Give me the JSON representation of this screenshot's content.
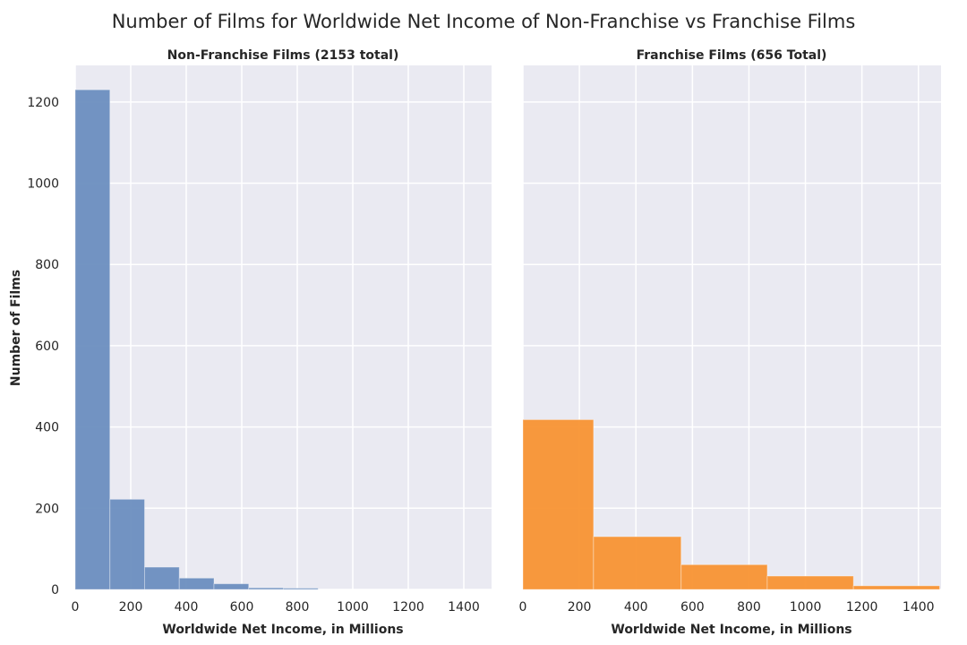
{
  "chart_data": {
    "type": "bar",
    "title": "Number of Films for Worldwide Net Income of Non-Franchise vs Franchise Films",
    "ylabel": "Number of Films",
    "ylim": [
      0,
      1290
    ],
    "yticks": [
      0,
      200,
      400,
      600,
      800,
      1000,
      1200
    ],
    "grid": true,
    "panels": [
      {
        "title": "Non-Franchise Films (2153 total)",
        "xlabel": "Worldwide Net Income, in Millions",
        "xlim": [
          0,
          1500
        ],
        "xticks": [
          0,
          200,
          400,
          600,
          800,
          1000,
          1200,
          1400
        ],
        "color": "#6C8EBF",
        "bins": [
          {
            "start": 0,
            "end": 125,
            "count": 1230
          },
          {
            "start": 125,
            "end": 250,
            "count": 222
          },
          {
            "start": 250,
            "end": 375,
            "count": 55
          },
          {
            "start": 375,
            "end": 500,
            "count": 28
          },
          {
            "start": 500,
            "end": 625,
            "count": 14
          },
          {
            "start": 625,
            "end": 750,
            "count": 4
          },
          {
            "start": 750,
            "end": 875,
            "count": 3
          }
        ]
      },
      {
        "title": "Franchise Films (656 Total)",
        "xlabel": "Worldwide Net Income, in Millions",
        "xlim": [
          0,
          1480
        ],
        "xticks": [
          0,
          200,
          400,
          600,
          800,
          1000,
          1200,
          1400
        ],
        "color": "#F89433",
        "bins": [
          {
            "start": 0,
            "end": 250,
            "count": 418
          },
          {
            "start": 250,
            "end": 560,
            "count": 130
          },
          {
            "start": 560,
            "end": 865,
            "count": 61
          },
          {
            "start": 865,
            "end": 1170,
            "count": 33
          },
          {
            "start": 1170,
            "end": 1475,
            "count": 9
          }
        ]
      }
    ]
  }
}
